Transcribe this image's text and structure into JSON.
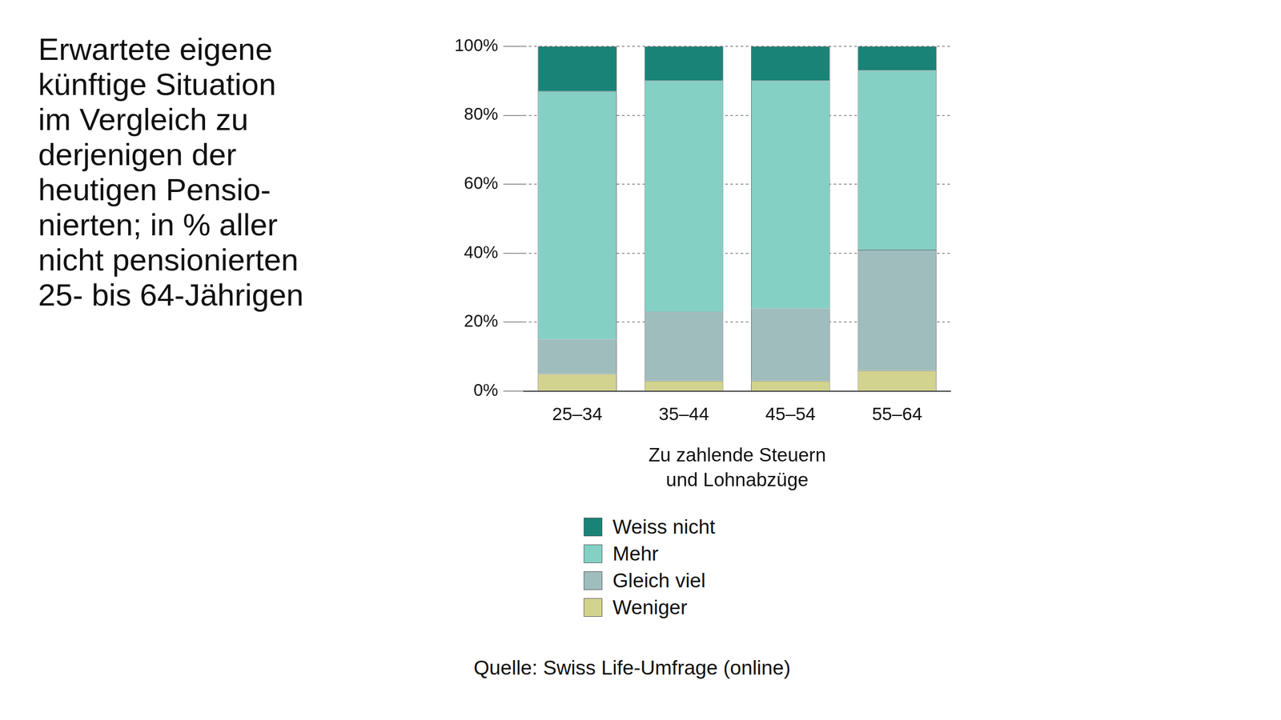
{
  "chart_data": {
    "type": "bar",
    "title": [
      "Erwartete eigene",
      "künftige Situation",
      "im Vergleich zu",
      "derjenigen der",
      "heutigen Pensio-",
      "nierten; in % aller",
      "nicht pensionierten",
      "25- bis 64-Jährigen"
    ],
    "xlabel": [
      "Zu zahlende Steuern",
      "und Lohnabzüge"
    ],
    "source": "Quelle: Swiss Life-Umfrage (online)",
    "categories": [
      "25–34",
      "35–44",
      "45–54",
      "55–64"
    ],
    "series": [
      {
        "name": "Weniger",
        "color": "#d1d38e",
        "values": [
          5,
          3,
          3,
          6
        ]
      },
      {
        "name": "Gleich viel",
        "color": "#9fbdbd",
        "values": [
          10,
          20,
          21,
          35
        ]
      },
      {
        "name": "Mehr",
        "color": "#84d0c5",
        "values": [
          72,
          67,
          66,
          52
        ]
      },
      {
        "name": "Weiss nicht",
        "color": "#1a8378",
        "values": [
          13,
          10,
          10,
          7
        ]
      }
    ],
    "stacked": true,
    "ylim": [
      0,
      100
    ],
    "yticks": [
      {
        "value": 0,
        "label": "0%"
      },
      {
        "value": 20,
        "label": "20%"
      },
      {
        "value": 40,
        "label": "40%"
      },
      {
        "value": 60,
        "label": "60%"
      },
      {
        "value": 80,
        "label": "80%"
      },
      {
        "value": 100,
        "label": "100%"
      }
    ],
    "grid": true,
    "legend": "bottom"
  }
}
